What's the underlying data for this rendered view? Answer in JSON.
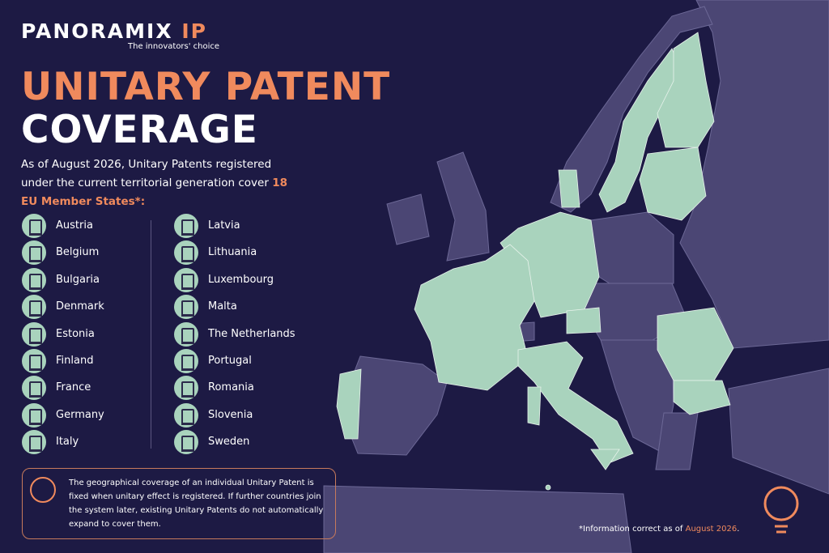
{
  "brand": {
    "name": "PANORAMIX",
    "suffix": "IP",
    "tagline": "The innovators' choice"
  },
  "title": {
    "line1": "UNITARY PATENT",
    "line2": "COVERAGE"
  },
  "intro": {
    "text": "As of August 2026, Unitary Patents registered under the current territorial generation cover",
    "highlight": "18 EU Member States",
    "suffix": "*:"
  },
  "countries": {
    "left": [
      "Austria",
      "Belgium",
      "Bulgaria",
      "Denmark",
      "Estonia",
      "Finland",
      "France",
      "Germany",
      "Italy"
    ],
    "right": [
      "Latvia",
      "Lithuania",
      "Luxembourg",
      "Malta",
      "The Netherlands",
      "Portugal",
      "Romania",
      "Slovenia",
      "Sweden"
    ]
  },
  "note": "The geographical coverage of an individual Unitary Patent is fixed when unitary effect is registered. If further countries join the system later, existing Unitary Patents do not automatically expand to cover them.",
  "footer": {
    "text": "*Information correct as of",
    "date": "August 2026",
    "end": "."
  }
}
